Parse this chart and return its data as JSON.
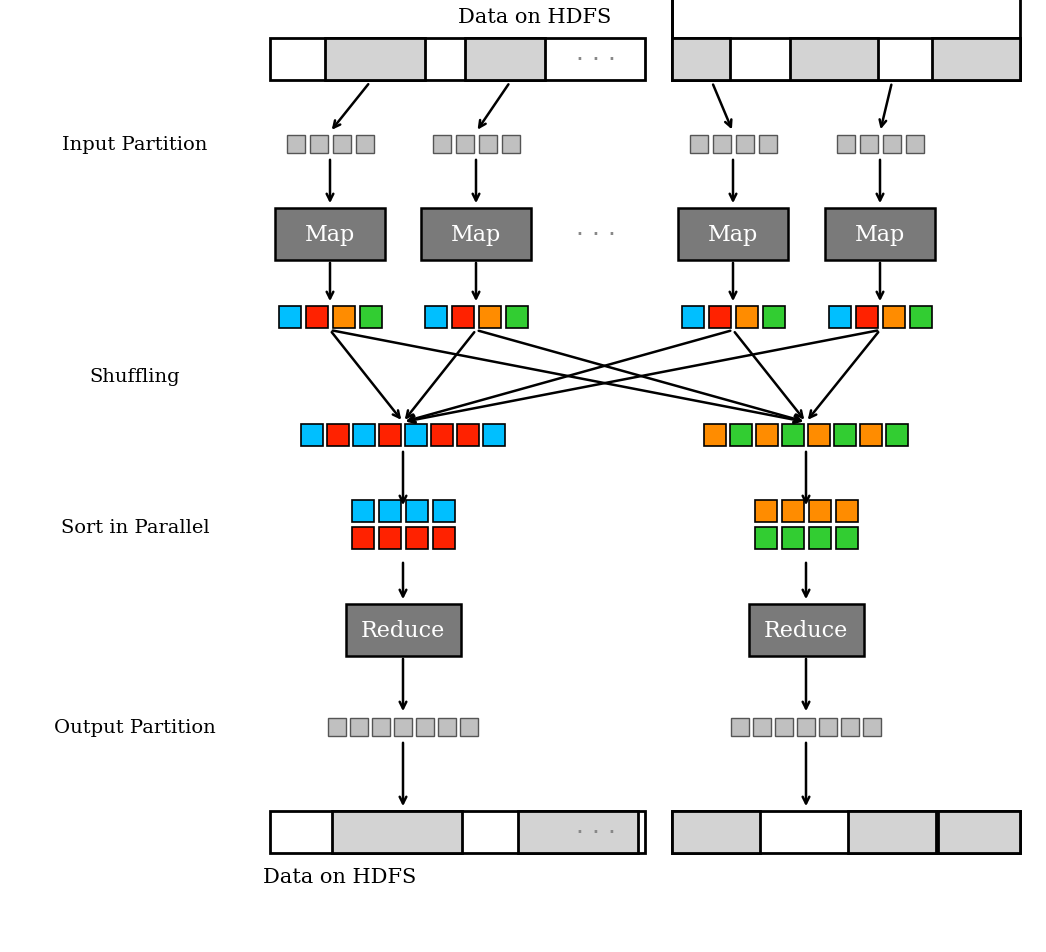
{
  "title_top": "Data on HDFS",
  "title_bottom": "Data on HDFS",
  "label_input": "Input Partition",
  "label_shuffling": "Shuffling",
  "label_sort": "Sort in Parallel",
  "label_output": "Output Partition",
  "label_map": "Map",
  "label_reduce": "Reduce",
  "hdfs_bar_color_light": "#d3d3d3",
  "hdfs_bar_color_white": "#ffffff",
  "map_box_color": "#7a7a7a",
  "reduce_box_color": "#7a7a7a",
  "input_partition_color": "#c0c0c0",
  "output_partition_color": "#c0c0c0",
  "colors_emit": [
    "#00bfff",
    "#ff2200",
    "#ff8c00",
    "#32cd32"
  ],
  "colors_shuffle_left": [
    "#00bfff",
    "#ff2200",
    "#00bfff",
    "#ff2200",
    "#00bfff",
    "#ff2200",
    "#ff2200",
    "#00bfff"
  ],
  "colors_shuffle_right": [
    "#ff8c00",
    "#32cd32",
    "#ff8c00",
    "#32cd32",
    "#ff8c00",
    "#32cd32",
    "#ff8c00",
    "#32cd32"
  ],
  "colors_sort_left_row1": [
    "#00bfff",
    "#00bfff",
    "#00bfff",
    "#00bfff"
  ],
  "colors_sort_left_row2": [
    "#ff2200",
    "#ff2200",
    "#ff2200",
    "#ff2200"
  ],
  "colors_sort_right_row1": [
    "#ff8c00",
    "#ff8c00",
    "#ff8c00",
    "#ff8c00"
  ],
  "colors_sort_right_row2": [
    "#32cd32",
    "#32cd32",
    "#32cd32",
    "#32cd32"
  ],
  "bg_color": "#ffffff",
  "text_color": "#000000",
  "dots_color": "#888888"
}
